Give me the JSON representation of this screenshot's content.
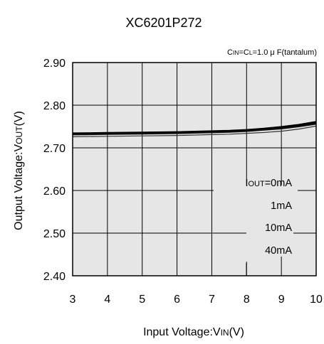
{
  "chart_data": {
    "type": "line",
    "title": "XC6201P272",
    "condition": {
      "parts": [
        {
          "text": "C",
          "size": "big"
        },
        {
          "text": "IN",
          "size": "small"
        },
        {
          "text": "=C",
          "size": "big"
        },
        {
          "text": "L",
          "size": "small"
        },
        {
          "text": "=1.0 μ F(tantalum)",
          "size": "big"
        }
      ]
    },
    "xlabel": {
      "parts": [
        {
          "text": "Input Voltage:V",
          "size": "big"
        },
        {
          "text": "IN",
          "size": "small"
        },
        {
          "text": "(V)",
          "size": "big"
        }
      ]
    },
    "ylabel": {
      "parts": [
        {
          "text": "Output Voltage:V",
          "size": "big"
        },
        {
          "text": "OUT",
          "size": "small"
        },
        {
          "text": "(V)",
          "size": "big"
        }
      ]
    },
    "xlim": [
      3,
      10
    ],
    "ylim": [
      2.4,
      2.9
    ],
    "xticks": [
      "3",
      "4",
      "5",
      "6",
      "7",
      "8",
      "9",
      "10"
    ],
    "yticks": [
      "2.40",
      "2.50",
      "2.60",
      "2.70",
      "2.80",
      "2.90"
    ],
    "grid": true,
    "plot_background": "#e6e6e6",
    "series": [
      {
        "name": "IOUT=0mA",
        "x": [
          3,
          4,
          5,
          6,
          7,
          7.5,
          8,
          8.5,
          9,
          9.5,
          10
        ],
        "y": [
          2.734,
          2.735,
          2.736,
          2.737,
          2.739,
          2.74,
          2.742,
          2.745,
          2.749,
          2.754,
          2.761
        ]
      },
      {
        "name": "1mA",
        "x": [
          3,
          4,
          5,
          6,
          7,
          7.5,
          8,
          8.5,
          9,
          9.5,
          10
        ],
        "y": [
          2.733,
          2.734,
          2.735,
          2.736,
          2.738,
          2.739,
          2.741,
          2.744,
          2.748,
          2.752,
          2.759
        ]
      },
      {
        "name": "10mA",
        "x": [
          3,
          4,
          5,
          6,
          7,
          7.5,
          8,
          8.5,
          9,
          9.5,
          10
        ],
        "y": [
          2.731,
          2.732,
          2.733,
          2.734,
          2.736,
          2.737,
          2.739,
          2.742,
          2.745,
          2.75,
          2.756
        ]
      },
      {
        "name": "40mA",
        "x": [
          3,
          4,
          5,
          6,
          7,
          7.5,
          8,
          8.5,
          9,
          9.5,
          10
        ],
        "y": [
          2.726,
          2.727,
          2.728,
          2.729,
          2.731,
          2.732,
          2.734,
          2.736,
          2.739,
          2.744,
          2.751
        ]
      }
    ],
    "legend": {
      "placement": "lower-right",
      "entries": [
        {
          "parts": [
            {
              "text": "I",
              "size": "big"
            },
            {
              "text": "OUT",
              "size": "small"
            },
            {
              "text": "=0mA",
              "size": "big"
            }
          ]
        },
        {
          "parts": [
            {
              "text": "1mA",
              "size": "big"
            }
          ]
        },
        {
          "parts": [
            {
              "text": "10mA",
              "size": "big"
            }
          ]
        },
        {
          "parts": [
            {
              "text": "40mA",
              "size": "big"
            }
          ]
        }
      ]
    }
  }
}
